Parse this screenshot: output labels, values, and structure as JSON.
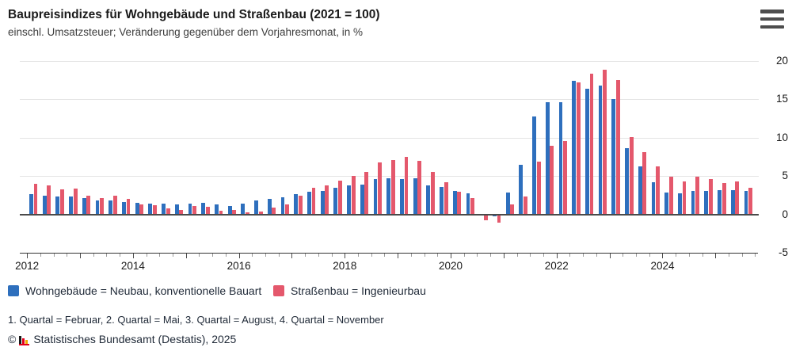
{
  "header": {
    "title": "Baupreisindizes für Wohngebäude und Straßenbau (2021 = 100)",
    "subtitle": "einschl. Umsatzsteuer; Veränderung gegenüber dem Vorjahresmonat, in %"
  },
  "menu": {
    "icon": "hamburger-menu-icon"
  },
  "chart_data": {
    "type": "bar",
    "title": "Baupreisindizes für Wohngebäude und Straßenbau (2021 = 100)",
    "subtitle": "einschl. Umsatzsteuer; Veränderung gegenüber dem Vorjahresmonat, in %",
    "unit": "%",
    "start_year": 2012,
    "periodicity": "quarterly",
    "x_axis": {
      "year_labels": [
        "2012",
        "2014",
        "2016",
        "2018",
        "2020",
        "2022",
        "2024"
      ]
    },
    "y_axis": {
      "ticks": [
        20,
        15,
        10,
        5,
        0,
        -5
      ],
      "min": -5,
      "max": 20,
      "grid": true,
      "labels_position": "right"
    },
    "series": [
      {
        "id": "wohngebaeude",
        "name": "Wohngebäude = Neubau, konventionelle Bauart",
        "color": "#2e6fbd",
        "values": [
          2.6,
          2.4,
          2.3,
          2.3,
          2.1,
          1.8,
          1.8,
          1.6,
          1.5,
          1.4,
          1.4,
          1.3,
          1.4,
          1.5,
          1.3,
          1.1,
          1.4,
          1.8,
          2.0,
          2.2,
          2.6,
          2.9,
          3.1,
          3.5,
          3.8,
          3.9,
          4.6,
          4.7,
          4.6,
          4.7,
          3.8,
          3.6,
          3.0,
          2.7,
          0.0,
          -0.3,
          2.8,
          6.5,
          12.8,
          14.6,
          14.6,
          17.4,
          16.4,
          16.8,
          15.0,
          8.6,
          6.3,
          4.2,
          2.8,
          2.7,
          3.1,
          3.0,
          3.2,
          3.2,
          3.1
        ]
      },
      {
        "id": "strassenbau",
        "name": "Straßenbau = Ingenieurbau",
        "color": "#e4586c",
        "values": [
          4.0,
          3.8,
          3.3,
          3.4,
          2.4,
          2.1,
          2.4,
          2.0,
          1.3,
          1.2,
          0.8,
          0.6,
          1.1,
          1.0,
          0.5,
          0.6,
          0.3,
          0.4,
          0.9,
          1.3,
          2.4,
          3.5,
          3.8,
          4.4,
          5.0,
          5.5,
          6.8,
          7.1,
          7.5,
          7.0,
          5.5,
          4.2,
          2.9,
          2.1,
          -0.8,
          -1.1,
          1.3,
          2.3,
          6.9,
          8.9,
          9.6,
          17.2,
          18.3,
          18.9,
          17.5,
          10.1,
          8.1,
          6.3,
          4.9,
          4.3,
          4.9,
          4.6,
          4.1,
          4.3,
          3.5
        ]
      }
    ],
    "legend_position": "bottom-left"
  },
  "legend": {
    "items": [
      {
        "label": "Wohngebäude = Neubau, konventionelle Bauart"
      },
      {
        "label": "Straßenbau = Ingenieurbau"
      }
    ]
  },
  "footnote": {
    "text": "1. Quartal = Februar, 2. Quartal = Mai, 3. Quartal = August, 4. Quartal = November"
  },
  "source": {
    "copyright": "©",
    "text": "Statistisches Bundesamt (Destatis), 2025",
    "logo": "destatis-bar-chart-logo",
    "logo_colors": [
      "#1a1a1a",
      "#e2001a",
      "#f0ab00"
    ]
  },
  "colors": {
    "series_blue": "#2e6fbd",
    "series_red": "#e4586c",
    "gridline": "#e4e4e4",
    "zero_line": "#4a4a4a",
    "axis_line": "#333333",
    "text": "#1a1a1a"
  }
}
